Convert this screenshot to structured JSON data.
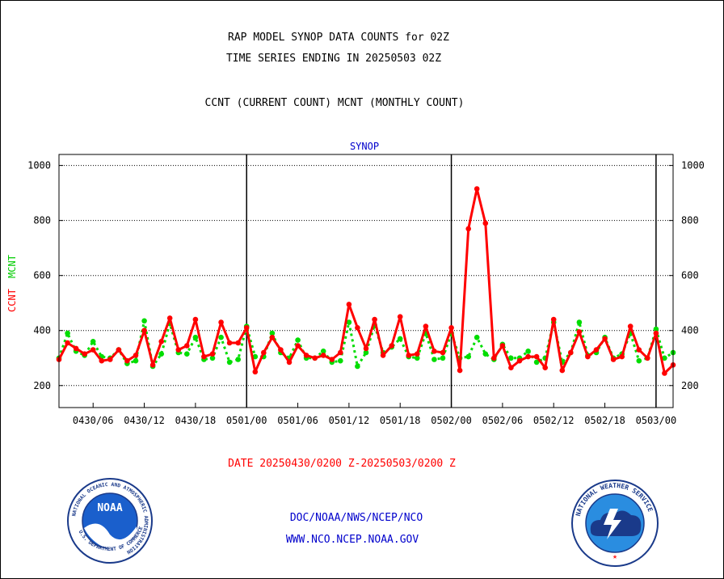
{
  "header": {
    "line1": "RAP MODEL SYNOP DATA COUNTS for 02Z",
    "line2": "TIME SERIES ENDING IN 20250503 02Z",
    "line3": "CCNT (CURRENT COUNT) MCNT (MONTHLY COUNT)"
  },
  "footer": {
    "date_range": "DATE 20250430/0200 Z-20250503/0200 Z",
    "org_path": "DOC/NOAA/NWS/NCEP/NCO",
    "website": "WWW.NCO.NCEP.NOAA.GOV"
  },
  "logos": {
    "noaa_text": "NOAA",
    "noaa_ring": "NATIONAL OCEANIC AND ATMOSPHERIC ADMINISTRATION",
    "noaa_ring_bottom": "U.S. DEPARTMENT OF COMMERCE",
    "nws_ring": "NATIONAL WEATHER SERVICE"
  },
  "colors": {
    "ccnt": "#ff0000",
    "mcnt": "#00dd00",
    "title": "#0000cc",
    "footer_red": "#ff0000",
    "footer_blue": "#0000cc"
  },
  "chart_data": {
    "type": "line",
    "title": "SYNOP",
    "ylabel_ccnt": "CCNT",
    "ylabel_mcnt": "MCNT",
    "x_start_hour": 0,
    "x_end_hour": 72,
    "x_step_hours": 1,
    "ylim": [
      120,
      1040
    ],
    "yticks": [
      200,
      400,
      600,
      800,
      1000
    ],
    "grid": true,
    "x_tick_labels": [
      {
        "hour": 4,
        "label": "0430/06"
      },
      {
        "hour": 10,
        "label": "0430/12"
      },
      {
        "hour": 16,
        "label": "0430/18"
      },
      {
        "hour": 22,
        "label": "0501/00"
      },
      {
        "hour": 28,
        "label": "0501/06"
      },
      {
        "hour": 34,
        "label": "0501/12"
      },
      {
        "hour": 40,
        "label": "0501/18"
      },
      {
        "hour": 46,
        "label": "0502/00"
      },
      {
        "hour": 52,
        "label": "0502/06"
      },
      {
        "hour": 58,
        "label": "0502/12"
      },
      {
        "hour": 64,
        "label": "0502/18"
      },
      {
        "hour": 70,
        "label": "0503/00"
      }
    ],
    "day_boundaries": [
      22,
      46,
      70
    ],
    "series": [
      {
        "name": "CCNT",
        "color": "#ff0000",
        "style": "solid",
        "values": [
          295,
          355,
          335,
          315,
          330,
          290,
          295,
          330,
          290,
          310,
          400,
          275,
          360,
          445,
          330,
          345,
          440,
          305,
          315,
          430,
          355,
          355,
          410,
          250,
          320,
          375,
          330,
          285,
          345,
          310,
          300,
          310,
          295,
          320,
          495,
          410,
          335,
          440,
          310,
          345,
          450,
          310,
          315,
          415,
          325,
          320,
          410,
          255,
          770,
          915,
          790,
          300,
          345,
          265,
          290,
          305,
          305,
          265,
          440,
          255,
          320,
          395,
          305,
          330,
          370,
          295,
          305,
          415,
          330,
          300,
          390,
          245,
          275
        ]
      },
      {
        "name": "MCNT",
        "color": "#00dd00",
        "style": "dotted",
        "values": [
          300,
          390,
          325,
          310,
          360,
          305,
          300,
          330,
          280,
          290,
          435,
          270,
          315,
          425,
          320,
          315,
          375,
          295,
          300,
          375,
          285,
          295,
          415,
          305,
          305,
          390,
          320,
          300,
          365,
          300,
          300,
          325,
          285,
          290,
          430,
          270,
          320,
          420,
          320,
          340,
          370,
          305,
          300,
          390,
          295,
          300,
          390,
          300,
          305,
          375,
          315,
          295,
          350,
          300,
          300,
          325,
          285,
          300,
          430,
          285,
          320,
          430,
          310,
          320,
          375,
          300,
          315,
          390,
          290,
          300,
          405,
          300,
          320
        ]
      }
    ]
  }
}
